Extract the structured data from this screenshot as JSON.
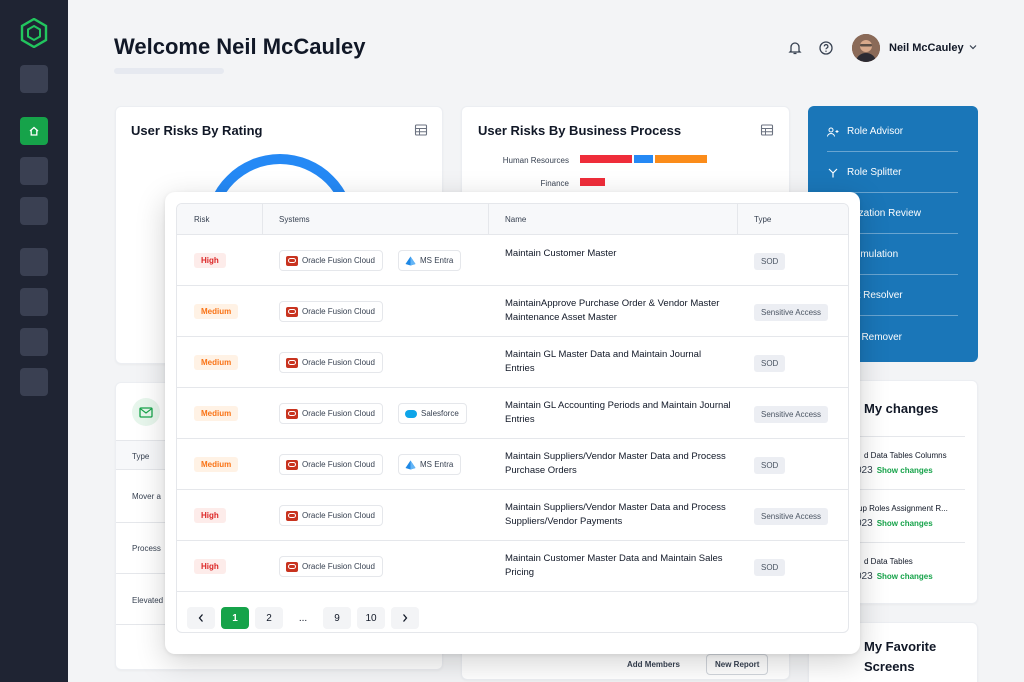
{
  "header": {
    "welcome": "Welcome Neil McCauley",
    "user_name": "Neil McCauley"
  },
  "cards": {
    "user_risks_by_rating": {
      "title": "User Risks By Rating"
    },
    "user_risks_by_process": {
      "title": "User Risks By Business Process",
      "labels": [
        "Human Resources",
        "Finance"
      ]
    },
    "tools": {
      "items": [
        {
          "label": "Role Advisor",
          "icon": "users-icon"
        },
        {
          "label": "Role Splitter",
          "icon": "split-icon"
        },
        {
          "label": "Authorization Review",
          "icon": "review-icon"
        },
        {
          "label": "SOD Simulation",
          "icon": "simulation-icon"
        },
        {
          "label": "Conflict Resolver",
          "icon": "resolver-icon"
        },
        {
          "label": "Activity Remover",
          "icon": "remover-icon"
        }
      ]
    },
    "my_changes": {
      "title": "My changes",
      "items": [
        {
          "title": "d Data Tables Columns",
          "date": "023",
          "action": "Show changes"
        },
        {
          "title": "up Roles Assignment R...",
          "date": "023",
          "action": "Show changes"
        },
        {
          "title": "d Data Tables",
          "date": "023",
          "action": "Show changes"
        }
      ]
    },
    "favorites": {
      "title_line1": "My Favorite",
      "title_line2": "Screens"
    },
    "left_lower": {
      "type_header": "Type",
      "rows": [
        "Mover a",
        "Process",
        "Elevated"
      ]
    },
    "bottom_actions": {
      "add_members": "Add Members",
      "new_report": "New Report"
    }
  },
  "modal": {
    "columns": [
      "Risk",
      "Systems",
      "Name",
      "Type"
    ],
    "rows": [
      {
        "risk": "High",
        "systems": [
          "Oracle Fusion Cloud",
          "MS Entra"
        ],
        "name": "Maintain Customer Master",
        "type": "SOD"
      },
      {
        "risk": "Medium",
        "systems": [
          "Oracle Fusion Cloud"
        ],
        "name": "MaintainApprove Purchase Order & Vendor Master Maintenance Asset Master",
        "type": "Sensitive Access"
      },
      {
        "risk": "Medium",
        "systems": [
          "Oracle Fusion Cloud"
        ],
        "name": "Maintain GL Master Data and Maintain Journal Entries",
        "type": "SOD"
      },
      {
        "risk": "Medium",
        "systems": [
          "Oracle Fusion Cloud",
          "Salesforce"
        ],
        "name": "Maintain GL Accounting Periods and Maintain Journal Entries",
        "type": "Sensitive Access"
      },
      {
        "risk": "Medium",
        "systems": [
          "Oracle Fusion Cloud",
          "MS Entra"
        ],
        "name": "Maintain Suppliers/Vendor Master Data and Process Purchase Orders",
        "type": "SOD"
      },
      {
        "risk": "High",
        "systems": [
          "Oracle Fusion Cloud"
        ],
        "name": "Maintain Suppliers/Vendor Master Data and Process Suppliers/Vendor Payments",
        "type": "Sensitive Access"
      },
      {
        "risk": "High",
        "systems": [
          "Oracle Fusion Cloud"
        ],
        "name": "Maintain Customer Master Data and Maintain Sales Pricing",
        "type": "SOD"
      }
    ],
    "pagination": {
      "pages": [
        "1",
        "2",
        "...",
        "9",
        "10"
      ],
      "active": "1"
    }
  },
  "colors": {
    "sidebar": "#1f2433",
    "accent_green": "#16a34a",
    "accent_blue": "#1a76b8",
    "high": "#dc2626",
    "medium": "#f97316"
  }
}
